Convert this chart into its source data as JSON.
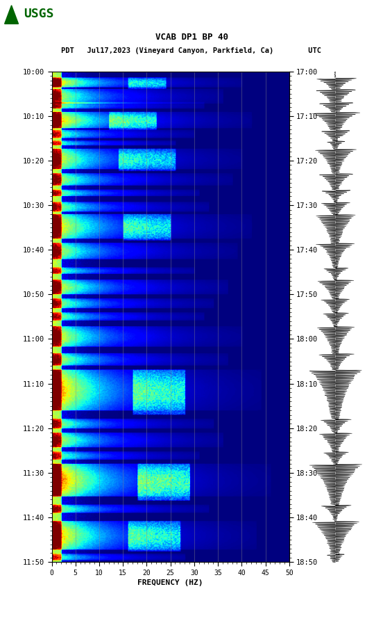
{
  "title_line1": "VCAB DP1 BP 40",
  "title_line2": "PDT   Jul17,2023 (Vineyard Canyon, Parkfield, Ca)        UTC",
  "xlabel": "FREQUENCY (HZ)",
  "freq_min": 0,
  "freq_max": 50,
  "freq_ticks": [
    0,
    5,
    10,
    15,
    20,
    25,
    30,
    35,
    40,
    45,
    50
  ],
  "left_time_labels": [
    "10:00",
    "10:10",
    "10:20",
    "10:30",
    "10:40",
    "10:50",
    "11:00",
    "11:10",
    "11:20",
    "11:30",
    "11:40",
    "11:50"
  ],
  "right_time_labels": [
    "17:00",
    "17:10",
    "17:20",
    "17:30",
    "17:40",
    "17:50",
    "18:00",
    "18:10",
    "18:20",
    "18:30",
    "18:40",
    "18:50"
  ],
  "n_time_steps": 600,
  "n_freq_steps": 250,
  "background_color": "#ffffff",
  "colormap": "jet",
  "fig_width": 5.52,
  "fig_height": 8.93,
  "dpi": 100,
  "vgrid_freqs": [
    5,
    10,
    15,
    20,
    25,
    30,
    35,
    40,
    45
  ],
  "vgrid_color": "#888888",
  "vgrid_lw": 0.5,
  "logo_color": "#006400",
  "usgs_text": "USGS"
}
